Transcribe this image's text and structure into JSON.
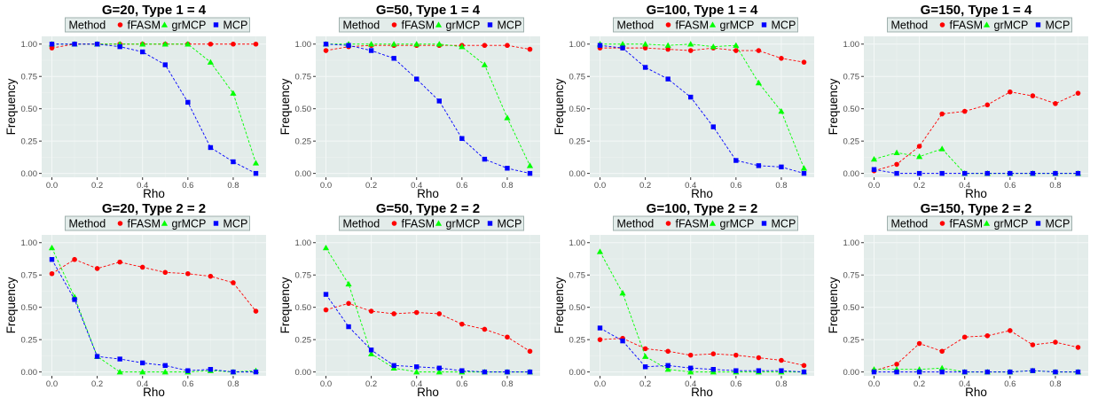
{
  "chart_data": [
    {
      "type": "line",
      "title": "G=20, Type 1 = 4",
      "xlabel": "Rho",
      "ylabel": "Frequency",
      "x": [
        0.0,
        0.1,
        0.2,
        0.3,
        0.4,
        0.5,
        0.6,
        0.7,
        0.8,
        0.9
      ],
      "xlim": [
        -0.045,
        0.945
      ],
      "ylim": [
        -0.03,
        1.06
      ],
      "xticks": [
        "0.0",
        "0.2",
        "0.4",
        "0.6",
        "0.8"
      ],
      "yticks": [
        "0.00",
        "0.25",
        "0.50",
        "0.75",
        "1.00"
      ],
      "legend_title": "Method",
      "legend_position": "top",
      "series": [
        {
          "name": "fFASM",
          "color": "#ff0000",
          "marker": "circle",
          "values": [
            0.97,
            1.0,
            1.0,
            1.0,
            1.0,
            1.0,
            1.0,
            1.0,
            1.0,
            1.0
          ]
        },
        {
          "name": "grMCP",
          "color": "#00ff00",
          "marker": "triangle",
          "values": [
            1.0,
            1.0,
            1.0,
            1.0,
            1.0,
            1.0,
            1.0,
            0.86,
            0.62,
            0.08
          ]
        },
        {
          "name": "MCP",
          "color": "#0000ff",
          "marker": "square",
          "values": [
            1.0,
            1.0,
            1.0,
            0.98,
            0.94,
            0.84,
            0.55,
            0.2,
            0.09,
            0.0
          ]
        }
      ]
    },
    {
      "type": "line",
      "title": "G=50, Type 1 = 4",
      "xlabel": "Rho",
      "ylabel": "Frequency",
      "x": [
        0.0,
        0.1,
        0.2,
        0.3,
        0.4,
        0.5,
        0.6,
        0.7,
        0.8,
        0.9
      ],
      "xlim": [
        -0.045,
        0.945
      ],
      "ylim": [
        -0.03,
        1.06
      ],
      "xticks": [
        "0.0",
        "0.2",
        "0.4",
        "0.6",
        "0.8"
      ],
      "yticks": [
        "0.00",
        "0.25",
        "0.50",
        "0.75",
        "1.00"
      ],
      "legend_title": "Method",
      "legend_position": "top",
      "series": [
        {
          "name": "fFASM",
          "color": "#ff0000",
          "marker": "circle",
          "values": [
            0.95,
            0.98,
            0.99,
            0.99,
            0.99,
            0.99,
            0.99,
            0.99,
            0.99,
            0.96
          ]
        },
        {
          "name": "grMCP",
          "color": "#00ff00",
          "marker": "triangle",
          "values": [
            1.0,
            1.0,
            1.0,
            1.0,
            1.0,
            1.0,
            0.98,
            0.84,
            0.43,
            0.06
          ]
        },
        {
          "name": "MCP",
          "color": "#0000ff",
          "marker": "square",
          "values": [
            1.0,
            0.99,
            0.95,
            0.89,
            0.73,
            0.56,
            0.27,
            0.11,
            0.04,
            0.0
          ]
        }
      ]
    },
    {
      "type": "line",
      "title": "G=100, Type 1 = 4",
      "xlabel": "Rho",
      "ylabel": "Frequency",
      "x": [
        0.0,
        0.1,
        0.2,
        0.3,
        0.4,
        0.5,
        0.6,
        0.7,
        0.8,
        0.9
      ],
      "xlim": [
        -0.045,
        0.945
      ],
      "ylim": [
        -0.03,
        1.06
      ],
      "xticks": [
        "0.0",
        "0.2",
        "0.4",
        "0.6",
        "0.8"
      ],
      "yticks": [
        "0.00",
        "0.25",
        "0.50",
        "0.75",
        "1.00"
      ],
      "legend_title": "Method",
      "legend_position": "top",
      "series": [
        {
          "name": "fFASM",
          "color": "#ff0000",
          "marker": "circle",
          "values": [
            0.97,
            0.97,
            0.97,
            0.96,
            0.95,
            0.97,
            0.95,
            0.95,
            0.89,
            0.86
          ]
        },
        {
          "name": "grMCP",
          "color": "#00ff00",
          "marker": "triangle",
          "values": [
            1.0,
            1.0,
            1.0,
            0.99,
            1.0,
            0.98,
            0.99,
            0.7,
            0.48,
            0.04
          ]
        },
        {
          "name": "MCP",
          "color": "#0000ff",
          "marker": "square",
          "values": [
            0.99,
            0.97,
            0.82,
            0.73,
            0.59,
            0.36,
            0.1,
            0.06,
            0.05,
            0.0
          ]
        }
      ]
    },
    {
      "type": "line",
      "title": "G=150, Type 1 = 4",
      "xlabel": "Rho",
      "ylabel": "Frequency",
      "x": [
        0.0,
        0.1,
        0.2,
        0.3,
        0.4,
        0.5,
        0.6,
        0.7,
        0.8,
        0.9
      ],
      "xlim": [
        -0.045,
        0.945
      ],
      "ylim": [
        -0.03,
        1.06
      ],
      "xticks": [
        "0.0",
        "0.2",
        "0.4",
        "0.6",
        "0.8"
      ],
      "yticks": [
        "0.00",
        "0.25",
        "0.50",
        "0.75",
        "1.00"
      ],
      "legend_title": "Method",
      "legend_position": "top",
      "series": [
        {
          "name": "fFASM",
          "color": "#ff0000",
          "marker": "circle",
          "values": [
            0.02,
            0.07,
            0.21,
            0.46,
            0.48,
            0.53,
            0.63,
            0.6,
            0.54,
            0.62
          ]
        },
        {
          "name": "grMCP",
          "color": "#00ff00",
          "marker": "triangle",
          "values": [
            0.11,
            0.16,
            0.13,
            0.19,
            0.0,
            0.0,
            0.0,
            0.0,
            0.0,
            0.0
          ]
        },
        {
          "name": "MCP",
          "color": "#0000ff",
          "marker": "square",
          "values": [
            0.03,
            0.0,
            0.0,
            0.0,
            0.0,
            0.0,
            0.0,
            0.0,
            0.0,
            0.0
          ]
        }
      ]
    },
    {
      "type": "line",
      "title": "G=20, Type 2 = 2",
      "xlabel": "Rho",
      "ylabel": "Frequency",
      "x": [
        0.0,
        0.1,
        0.2,
        0.3,
        0.4,
        0.5,
        0.6,
        0.7,
        0.8,
        0.9
      ],
      "xlim": [
        -0.045,
        0.945
      ],
      "ylim": [
        -0.03,
        1.06
      ],
      "xticks": [
        "0.0",
        "0.2",
        "0.4",
        "0.6",
        "0.8"
      ],
      "yticks": [
        "0.00",
        "0.25",
        "0.50",
        "0.75",
        "1.00"
      ],
      "legend_title": "Method",
      "legend_position": "top",
      "series": [
        {
          "name": "fFASM",
          "color": "#ff0000",
          "marker": "circle",
          "values": [
            0.76,
            0.87,
            0.8,
            0.85,
            0.81,
            0.77,
            0.76,
            0.74,
            0.69,
            0.47
          ]
        },
        {
          "name": "grMCP",
          "color": "#00ff00",
          "marker": "triangle",
          "values": [
            0.96,
            0.58,
            0.12,
            0.0,
            0.0,
            0.0,
            0.0,
            0.01,
            0.0,
            0.01
          ]
        },
        {
          "name": "MCP",
          "color": "#0000ff",
          "marker": "square",
          "values": [
            0.87,
            0.56,
            0.12,
            0.1,
            0.07,
            0.05,
            0.01,
            0.02,
            0.0,
            0.0
          ]
        }
      ]
    },
    {
      "type": "line",
      "title": "G=50, Type 2 = 2",
      "xlabel": "Rho",
      "ylabel": "Frequency",
      "x": [
        0.0,
        0.1,
        0.2,
        0.3,
        0.4,
        0.5,
        0.6,
        0.7,
        0.8,
        0.9
      ],
      "xlim": [
        -0.045,
        0.945
      ],
      "ylim": [
        -0.03,
        1.06
      ],
      "xticks": [
        "0.0",
        "0.2",
        "0.4",
        "0.6",
        "0.8"
      ],
      "yticks": [
        "0.00",
        "0.25",
        "0.50",
        "0.75",
        "1.00"
      ],
      "legend_title": "Method",
      "legend_position": "top",
      "series": [
        {
          "name": "fFASM",
          "color": "#ff0000",
          "marker": "circle",
          "values": [
            0.48,
            0.53,
            0.47,
            0.45,
            0.46,
            0.45,
            0.37,
            0.33,
            0.27,
            0.16
          ]
        },
        {
          "name": "grMCP",
          "color": "#00ff00",
          "marker": "triangle",
          "values": [
            0.96,
            0.68,
            0.14,
            0.03,
            0.0,
            0.0,
            0.0,
            0.0,
            0.0,
            0.0
          ]
        },
        {
          "name": "MCP",
          "color": "#0000ff",
          "marker": "square",
          "values": [
            0.6,
            0.35,
            0.17,
            0.05,
            0.04,
            0.03,
            0.01,
            0.0,
            0.0,
            0.0
          ]
        }
      ]
    },
    {
      "type": "line",
      "title": "G=100, Type 2 = 2",
      "xlabel": "Rho",
      "ylabel": "Frequency",
      "x": [
        0.0,
        0.1,
        0.2,
        0.3,
        0.4,
        0.5,
        0.6,
        0.7,
        0.8,
        0.9
      ],
      "xlim": [
        -0.045,
        0.945
      ],
      "ylim": [
        -0.03,
        1.06
      ],
      "xticks": [
        "0.0",
        "0.2",
        "0.4",
        "0.6",
        "0.8"
      ],
      "yticks": [
        "0.00",
        "0.25",
        "0.50",
        "0.75",
        "1.00"
      ],
      "legend_title": "Method",
      "legend_position": "top",
      "series": [
        {
          "name": "fFASM",
          "color": "#ff0000",
          "marker": "circle",
          "values": [
            0.25,
            0.26,
            0.18,
            0.16,
            0.13,
            0.14,
            0.13,
            0.11,
            0.09,
            0.05
          ]
        },
        {
          "name": "grMCP",
          "color": "#00ff00",
          "marker": "triangle",
          "values": [
            0.93,
            0.61,
            0.12,
            0.02,
            0.0,
            0.0,
            0.0,
            0.0,
            0.0,
            0.0
          ]
        },
        {
          "name": "MCP",
          "color": "#0000ff",
          "marker": "square",
          "values": [
            0.34,
            0.24,
            0.04,
            0.05,
            0.03,
            0.02,
            0.01,
            0.01,
            0.01,
            0.0
          ]
        }
      ]
    },
    {
      "type": "line",
      "title": "G=150, Type 2 = 2",
      "xlabel": "Rho",
      "ylabel": "Frequency",
      "x": [
        0.0,
        0.1,
        0.2,
        0.3,
        0.4,
        0.5,
        0.6,
        0.7,
        0.8,
        0.9
      ],
      "xlim": [
        -0.045,
        0.945
      ],
      "ylim": [
        -0.03,
        1.06
      ],
      "xticks": [
        "0.0",
        "0.2",
        "0.4",
        "0.6",
        "0.8"
      ],
      "yticks": [
        "0.00",
        "0.25",
        "0.50",
        "0.75",
        "1.00"
      ],
      "legend_title": "Method",
      "legend_position": "top",
      "series": [
        {
          "name": "fFASM",
          "color": "#ff0000",
          "marker": "circle",
          "values": [
            0.01,
            0.06,
            0.22,
            0.16,
            0.27,
            0.28,
            0.32,
            0.21,
            0.23,
            0.19
          ]
        },
        {
          "name": "grMCP",
          "color": "#00ff00",
          "marker": "triangle",
          "values": [
            0.02,
            0.02,
            0.02,
            0.03,
            0.0,
            0.0,
            0.0,
            0.01,
            0.0,
            0.0
          ]
        },
        {
          "name": "MCP",
          "color": "#0000ff",
          "marker": "square",
          "values": [
            0.0,
            0.0,
            0.0,
            0.0,
            0.0,
            0.0,
            0.0,
            0.01,
            0.0,
            0.0
          ]
        }
      ]
    }
  ]
}
